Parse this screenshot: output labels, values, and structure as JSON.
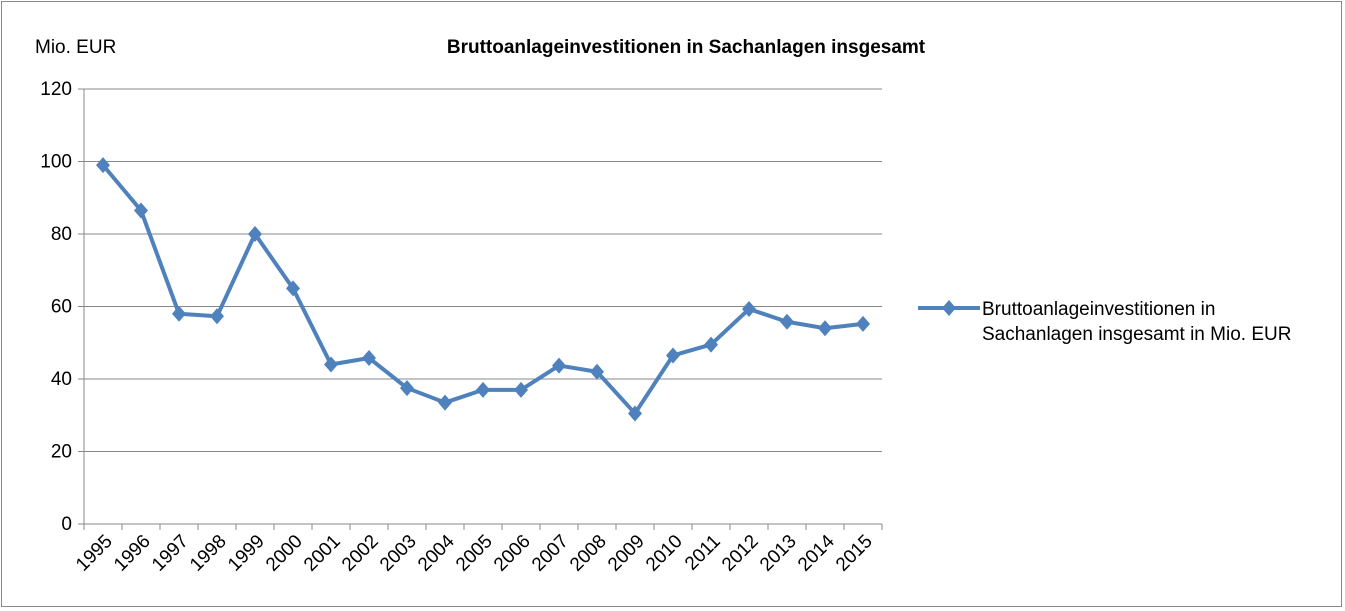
{
  "chart_data": {
    "type": "line",
    "title": "Bruttoanlageinvestitionen in Sachanlagen insgesamt",
    "y_label": "Mio. EUR",
    "categories": [
      "1995",
      "1996",
      "1997",
      "1998",
      "1999",
      "2000",
      "2001",
      "2002",
      "2003",
      "2004",
      "2005",
      "2006",
      "2007",
      "2008",
      "2009",
      "2010",
      "2011",
      "2012",
      "2013",
      "2014",
      "2015"
    ],
    "series": [
      {
        "name": "Bruttoanlageinvestitionen in Sachanlagen insgesamt in Mio. EUR",
        "color": "#4f81bd",
        "values": [
          99,
          86.5,
          58,
          57.3,
          80,
          65,
          44,
          45.8,
          37.5,
          33.5,
          37,
          37,
          43.7,
          42,
          30.5,
          46.5,
          49.5,
          59.3,
          55.8,
          54,
          55.2
        ]
      }
    ],
    "ylim": [
      0,
      120
    ],
    "yticks": [
      0,
      20,
      40,
      60,
      80,
      100,
      120
    ],
    "grid": true,
    "legend": "right"
  }
}
